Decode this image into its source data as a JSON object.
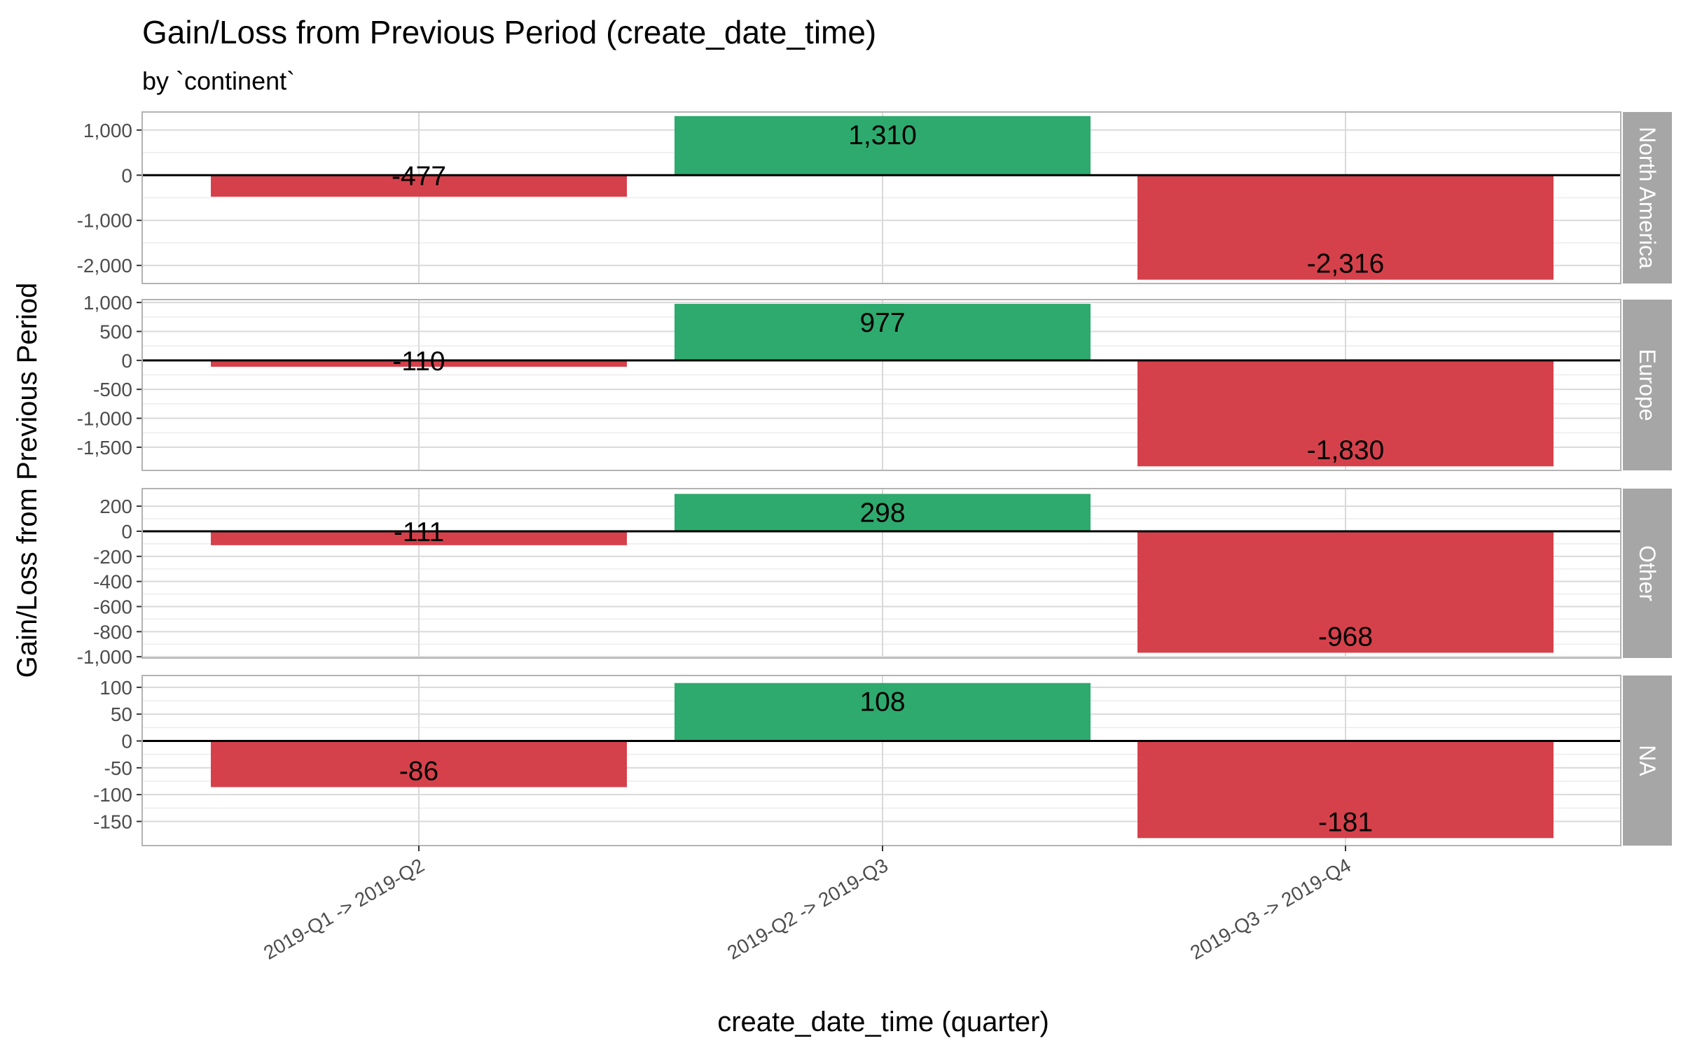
{
  "chart_data": {
    "type": "bar",
    "title": "Gain/Loss  from Previous Period (create_date_time)",
    "subtitle": "by `continent`",
    "xlabel": "create_date_time (quarter)",
    "ylabel": "Gain/Loss  from Previous Period",
    "categories": [
      "2019-Q1 -> 2019-Q2",
      "2019-Q2 -> 2019-Q3",
      "2019-Q3 -> 2019-Q4"
    ],
    "grid": true,
    "colors": {
      "gain": "#2eaa6e",
      "loss": "#d5414b",
      "strip": "#a6a6a6",
      "panel_border": "#b3b3b3",
      "grid": "#d9d9d9"
    },
    "facets": [
      {
        "name": "North America",
        "values": [
          -477,
          1310,
          -2316
        ],
        "labels": [
          "-477",
          "1,310",
          "-2,316"
        ],
        "ylim": [
          -2400,
          1400
        ],
        "ticks": [
          1000,
          0,
          -1000,
          -2000
        ],
        "tick_labels": [
          "1,000",
          "0",
          "-1,000",
          "-2,000"
        ]
      },
      {
        "name": "Europe",
        "values": [
          -110,
          977,
          -1830
        ],
        "labels": [
          "-110",
          "977",
          "-1,830"
        ],
        "ylim": [
          -1900,
          1050
        ],
        "ticks": [
          1000,
          500,
          0,
          -500,
          -1000,
          -1500
        ],
        "tick_labels": [
          "1,000",
          "500",
          "0",
          "-500",
          "-1,000",
          "-1,500"
        ]
      },
      {
        "name": "Other",
        "values": [
          -111,
          298,
          -968
        ],
        "labels": [
          "-111",
          "298",
          "-968"
        ],
        "ylim": [
          -1010,
          340
        ],
        "ticks": [
          200,
          0,
          -200,
          -400,
          -600,
          -800,
          -1000
        ],
        "tick_labels": [
          "200",
          "0",
          "-200",
          "-400",
          "-600",
          "-800",
          "-1,000"
        ]
      },
      {
        "name": "NA",
        "values": [
          -86,
          108,
          -181
        ],
        "labels": [
          "-86",
          "108",
          "-181"
        ],
        "ylim": [
          -195,
          122
        ],
        "ticks": [
          100,
          50,
          0,
          -50,
          -100,
          -150
        ],
        "tick_labels": [
          "100",
          "50",
          "0",
          "-50",
          "-100",
          "-150"
        ]
      }
    ]
  }
}
